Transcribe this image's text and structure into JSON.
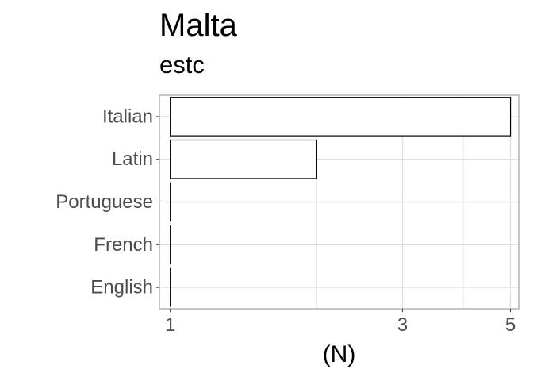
{
  "chart_data": {
    "type": "bar",
    "orientation": "horizontal",
    "title": "Malta",
    "subtitle": "estc",
    "xlabel": "(N)",
    "ylabel": "",
    "categories": [
      "Italian",
      "Latin",
      "Portuguese",
      "French",
      "English"
    ],
    "values": [
      5,
      2,
      1,
      1,
      1
    ],
    "x_scale": "log10",
    "xlim": [
      0.95,
      5.2
    ],
    "x_ticks": [
      1,
      3,
      5
    ],
    "grid": true,
    "legend": "none",
    "colors": {
      "bar_fill": "#ffffff",
      "bar_stroke": "#000000",
      "grid": "#e0e0e0",
      "panel_border": "#b3b3b3",
      "tick_text": "#4d4d4d"
    }
  }
}
